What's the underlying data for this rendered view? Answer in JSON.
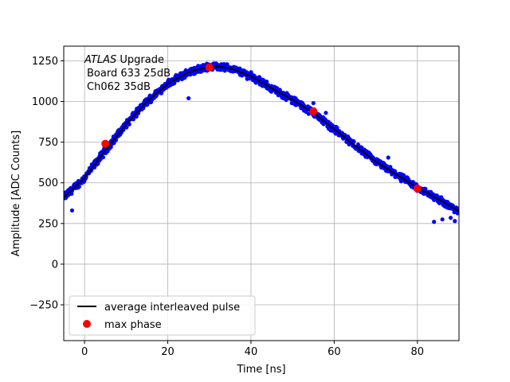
{
  "chart_data": {
    "type": "scatter",
    "xlabel": "Time [ns]",
    "ylabel": "Amplitude [ADC Counts]",
    "xlim": [
      -5,
      90
    ],
    "ylim": [
      -470,
      1340
    ],
    "xticks": [
      0,
      20,
      40,
      60,
      80
    ],
    "yticks": [
      -250,
      0,
      250,
      500,
      750,
      1000,
      1250
    ],
    "grid": true,
    "legend_position": "lower-left",
    "annotation": {
      "line1_italic": "ATLAS",
      "line1_rest": " Upgrade",
      "line2": "Board 633 25dB",
      "line3": "Ch062 35dB"
    },
    "series": [
      {
        "name": "average interleaved pulse",
        "kind": "line",
        "color": "#000000",
        "x": [
          -5,
          0,
          5,
          10,
          15,
          20,
          25,
          30,
          32,
          35,
          40,
          45,
          50,
          55,
          60,
          65,
          70,
          75,
          80,
          85,
          90
        ],
        "y": [
          410,
          530,
          700,
          860,
          1000,
          1110,
          1180,
          1215,
          1215,
          1205,
          1155,
          1080,
          1010,
          930,
          830,
          730,
          630,
          550,
          470,
          400,
          325
        ]
      },
      {
        "name": "",
        "kind": "scatter-band",
        "color": "#0000ff",
        "spread": 20,
        "outliers": [
          [
            -3,
            330
          ],
          [
            25,
            1020
          ],
          [
            40,
            1180
          ],
          [
            42,
            1150
          ],
          [
            55,
            990
          ],
          [
            58,
            930
          ],
          [
            73,
            655
          ],
          [
            84,
            260
          ],
          [
            86,
            275
          ],
          [
            88,
            285
          ],
          [
            89,
            265
          ]
        ]
      },
      {
        "name": "max phase",
        "kind": "scatter",
        "color": "#ff0000",
        "x": [
          5,
          30,
          55,
          80
        ],
        "y": [
          740,
          1210,
          940,
          465
        ]
      }
    ]
  }
}
